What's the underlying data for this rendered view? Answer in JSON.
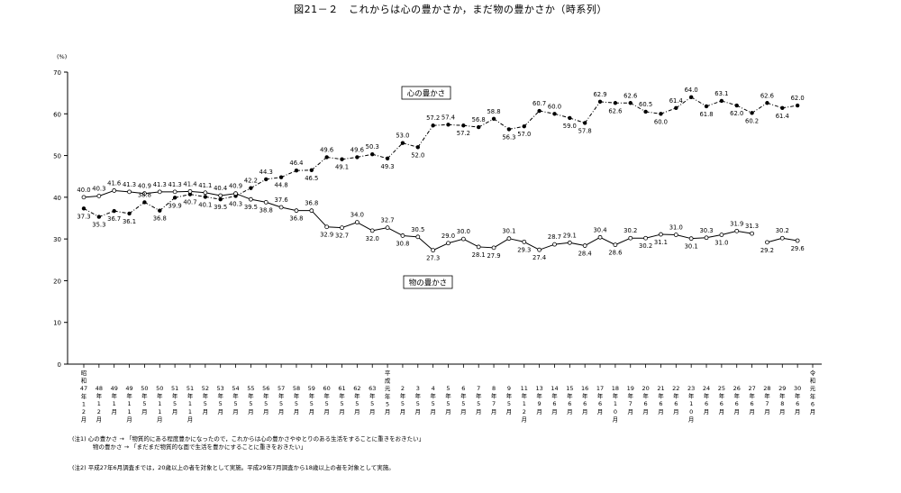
{
  "page_title": "図21－２　これからは心の豊かさか，まだ物の豊かさか（時系列）",
  "notes": {
    "note1_line1": "(注1) 心の豊かさ → 「物質的にある程度豊かになったので，これからは心の豊かさやゆとりのある生活をすることに重きをおきたい」",
    "note1_line2": "物の豊かさ → 「まだまだ物質的な面で生活を豊かにすることに重きをおきたい」",
    "note2": "(注2) 平成27年6月調査までは，20歳以上の者を対象として実施。平成29年7月調査から18歳以上の者を対象として実施。"
  },
  "chart_data": {
    "type": "line",
    "title": "図21－２　これからは心の豊かさか，まだ物の豊かさか（時系列）",
    "ylabel": "(%)",
    "ylim": [
      0,
      70
    ],
    "yticks": [
      0,
      10,
      20,
      30,
      40,
      50,
      60,
      70
    ],
    "grid": false,
    "categories": [
      "昭和47年1月",
      "48年12月",
      "49年1月",
      "49年11月",
      "50年5月",
      "50年11月",
      "51年5月",
      "51年11月",
      "52年5月",
      "53年5月",
      "54年5月",
      "55年5月",
      "56年5月",
      "57年5月",
      "58年5月",
      "59年5月",
      "60年5月",
      "61年5月",
      "62年5月",
      "63年5月",
      "平成元年5月",
      "2年5月",
      "3年5月",
      "4年5月",
      "5年5月",
      "6年5月",
      "7年5月",
      "8年7月",
      "9年5月",
      "11年12月",
      "13年9月",
      "14年6月",
      "15年6月",
      "16年6月",
      "17年6月",
      "18年10月",
      "19年7月",
      "20年6月",
      "21年6月",
      "22年6月",
      "23年10月",
      "24年6月",
      "25年6月",
      "26年6月",
      "27年6月",
      "28年7月",
      "29年8月",
      "30年6月",
      "令和元年6月"
    ],
    "axis_labels": [
      [
        "昭",
        "和",
        "47",
        "年",
        "1",
        "2",
        "月"
      ],
      [
        "48",
        "年",
        "1",
        "2",
        "月"
      ],
      [
        "49",
        "年",
        "1",
        "月"
      ],
      [
        "49",
        "年",
        "1",
        "1",
        "月"
      ],
      [
        "50",
        "年",
        "5",
        "月"
      ],
      [
        "50",
        "年",
        "1",
        "1",
        "月"
      ],
      [
        "51",
        "年",
        "5",
        "月"
      ],
      [
        "51",
        "年",
        "1",
        "1",
        "月"
      ],
      [
        "52",
        "年",
        "5",
        "月"
      ],
      [
        "53",
        "年",
        "5",
        "月"
      ],
      [
        "54",
        "年",
        "5",
        "月"
      ],
      [
        "55",
        "年",
        "5",
        "月"
      ],
      [
        "56",
        "年",
        "5",
        "月"
      ],
      [
        "57",
        "年",
        "5",
        "月"
      ],
      [
        "58",
        "年",
        "5",
        "月"
      ],
      [
        "59",
        "年",
        "5",
        "月"
      ],
      [
        "60",
        "年",
        "5",
        "月"
      ],
      [
        "61",
        "年",
        "5",
        "月"
      ],
      [
        "62",
        "年",
        "5",
        "月"
      ],
      [
        "63",
        "年",
        "5",
        "月"
      ],
      [
        "平",
        "成",
        "元",
        "年",
        "5",
        "月"
      ],
      [
        "2",
        "年",
        "5",
        "月"
      ],
      [
        "3",
        "年",
        "5",
        "月"
      ],
      [
        "4",
        "年",
        "5",
        "月"
      ],
      [
        "5",
        "年",
        "5",
        "月"
      ],
      [
        "6",
        "年",
        "5",
        "月"
      ],
      [
        "7",
        "年",
        "5",
        "月"
      ],
      [
        "8",
        "年",
        "7",
        "月"
      ],
      [
        "9",
        "年",
        "5",
        "月"
      ],
      [
        "11",
        "年",
        "1",
        "2",
        "月"
      ],
      [
        "13",
        "年",
        "9",
        "月"
      ],
      [
        "14",
        "年",
        "6",
        "月"
      ],
      [
        "15",
        "年",
        "6",
        "月"
      ],
      [
        "16",
        "年",
        "6",
        "月"
      ],
      [
        "17",
        "年",
        "6",
        "月"
      ],
      [
        "18",
        "年",
        "1",
        "0",
        "月"
      ],
      [
        "19",
        "年",
        "7",
        "月"
      ],
      [
        "20",
        "年",
        "6",
        "月"
      ],
      [
        "21",
        "年",
        "6",
        "月"
      ],
      [
        "22",
        "年",
        "6",
        "月"
      ],
      [
        "23",
        "年",
        "1",
        "0",
        "月"
      ],
      [
        "24",
        "年",
        "6",
        "月"
      ],
      [
        "25",
        "年",
        "6",
        "月"
      ],
      [
        "26",
        "年",
        "6",
        "月"
      ],
      [
        "27",
        "年",
        "6",
        "月"
      ],
      [
        "28",
        "年",
        "7",
        "月"
      ],
      [
        "29",
        "年",
        "8",
        "月"
      ],
      [
        "30",
        "年",
        "6",
        "月"
      ],
      [
        "令",
        "和",
        "元",
        "年",
        "6",
        "月"
      ]
    ],
    "series": [
      {
        "name": "心の豊かさ",
        "marker": "filled",
        "line_style": "dash-dot",
        "values": [
          37.3,
          35.3,
          36.7,
          36.1,
          38.8,
          36.8,
          39.9,
          40.7,
          40.1,
          39.5,
          40.3,
          42.2,
          44.3,
          44.8,
          46.4,
          46.5,
          49.6,
          49.1,
          49.6,
          50.3,
          49.3,
          53.0,
          52.0,
          57.2,
          57.4,
          57.2,
          56.8,
          58.8,
          56.3,
          57.0,
          60.7,
          60.0,
          59.0,
          57.8,
          62.9,
          62.6,
          62.6,
          60.5,
          60.0,
          61.4,
          64.0,
          61.8,
          63.1,
          62.0,
          60.2,
          62.6,
          61.4,
          62.0,
          null
        ],
        "label_position": [
          "below",
          "below",
          "below",
          "below",
          "above",
          "below",
          "below",
          "below",
          "below",
          "below",
          "below",
          "above",
          "above",
          "below",
          "above",
          "below",
          "above",
          "below",
          "above",
          "above",
          "below",
          "above",
          "below",
          "above",
          "above",
          "below",
          "above",
          "above",
          "below",
          "below",
          "above",
          "above",
          "below",
          "below",
          "above",
          "below",
          "above",
          "above",
          "below",
          "above",
          "above",
          "below",
          "above",
          "below",
          "below",
          "above",
          "below",
          "above",
          null
        ]
      },
      {
        "name": "物の豊かさ",
        "marker": "open",
        "line_style": "solid",
        "values": [
          40.0,
          40.3,
          41.6,
          41.3,
          40.9,
          41.3,
          41.3,
          41.4,
          41.1,
          40.4,
          40.9,
          39.5,
          38.8,
          37.6,
          36.8,
          36.8,
          32.9,
          32.7,
          34.0,
          32.0,
          32.7,
          30.8,
          30.5,
          27.3,
          29.0,
          30.0,
          28.1,
          27.9,
          30.1,
          29.3,
          27.4,
          28.7,
          29.1,
          28.4,
          30.4,
          28.6,
          30.2,
          30.2,
          31.1,
          31.0,
          30.1,
          30.3,
          31.0,
          31.9,
          31.3,
          29.2,
          30.2,
          29.6,
          null
        ],
        "label_position": [
          "above",
          "above",
          "above",
          "above",
          "above",
          "above",
          "above",
          "above",
          "above",
          "above",
          "above",
          "below",
          "below",
          "above",
          "below",
          "above",
          "below",
          "below",
          "above",
          "below",
          "above",
          "below",
          "above",
          "below",
          "above",
          "above",
          "below",
          "below",
          "above",
          "below",
          "below",
          "above",
          "above",
          "below",
          "above",
          "below",
          "above",
          "below",
          "below",
          "above",
          "below",
          "above",
          "below",
          "above",
          "above",
          "below",
          "above",
          "below",
          null
        ]
      }
    ],
    "series_labels": [
      "心の豊かさ",
      "物の豊かさ"
    ]
  }
}
